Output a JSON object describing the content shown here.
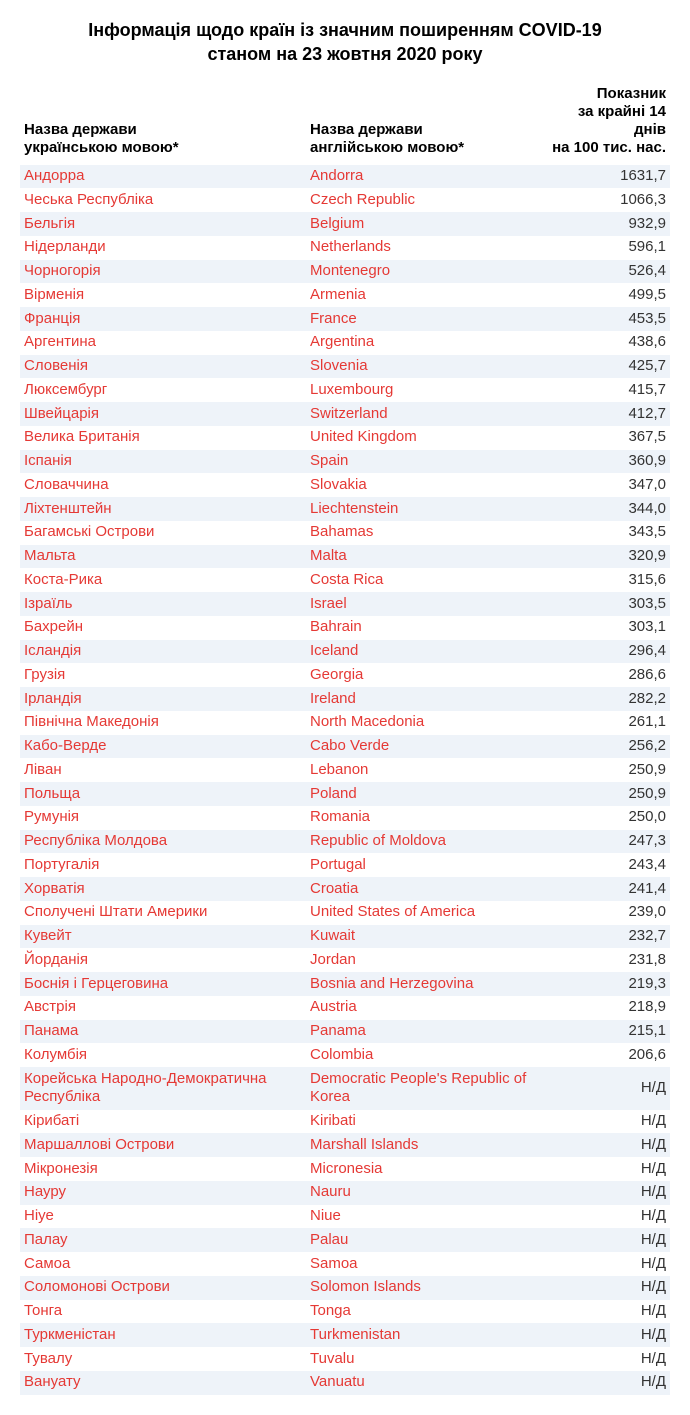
{
  "title_line1": "Інформація щодо країн із значним поширенням COVID-19",
  "title_line2": "станом на 23 жовтня 2020 року",
  "table": {
    "type": "table",
    "columns": {
      "uk_header_l1": "Назва держави",
      "uk_header_l2": "українською мовою*",
      "en_header_l1": "Назва держави",
      "en_header_l2": "англійською мовою*",
      "val_header_l1": "Показник",
      "val_header_l2": "за крайні 14 днів",
      "val_header_l3": "на 100 тис. нас."
    },
    "colors": {
      "country_text": "#e53935",
      "value_text": "#333333",
      "header_text": "#000000",
      "row_stripe_even": "#eef3f9",
      "row_stripe_odd": "#ffffff",
      "background": "#ffffff"
    },
    "font": {
      "title_size_pt": 18,
      "header_size_pt": 15,
      "body_size_pt": 15,
      "title_weight": 700,
      "header_weight": 700,
      "body_weight": 400
    },
    "column_widths_pct": [
      44,
      36,
      20
    ],
    "rows": [
      {
        "uk": "Андорра",
        "en": "Andorra",
        "val": "1631,7"
      },
      {
        "uk": "Чеська Республіка",
        "en": "Czech Republic",
        "val": "1066,3"
      },
      {
        "uk": "Бельгія",
        "en": "Belgium",
        "val": "932,9"
      },
      {
        "uk": "Нідерланди",
        "en": "Netherlands",
        "val": "596,1"
      },
      {
        "uk": "Чорногорія",
        "en": "Montenegro",
        "val": "526,4"
      },
      {
        "uk": "Вірменія",
        "en": "Armenia",
        "val": "499,5"
      },
      {
        "uk": "Франція",
        "en": "France",
        "val": "453,5"
      },
      {
        "uk": "Аргентина",
        "en": "Argentina",
        "val": "438,6"
      },
      {
        "uk": "Словенія",
        "en": "Slovenia",
        "val": "425,7"
      },
      {
        "uk": "Люксембург",
        "en": "Luxembourg",
        "val": "415,7"
      },
      {
        "uk": "Швейцарія",
        "en": "Switzerland",
        "val": "412,7"
      },
      {
        "uk": "Велика Британія",
        "en": "United Kingdom",
        "val": "367,5"
      },
      {
        "uk": "Іспанія",
        "en": "Spain",
        "val": "360,9"
      },
      {
        "uk": "Словаччина",
        "en": "Slovakia",
        "val": "347,0"
      },
      {
        "uk": "Ліхтенштейн",
        "en": "Liechtenstein",
        "val": "344,0"
      },
      {
        "uk": "Багамські Острови",
        "en": "Bahamas",
        "val": "343,5"
      },
      {
        "uk": "Мальта",
        "en": "Malta",
        "val": "320,9"
      },
      {
        "uk": "Коста-Рика",
        "en": "Costa Rica",
        "val": "315,6"
      },
      {
        "uk": "Ізраїль",
        "en": "Israel",
        "val": "303,5"
      },
      {
        "uk": "Бахрейн",
        "en": "Bahrain",
        "val": "303,1"
      },
      {
        "uk": "Ісландія",
        "en": "Iceland",
        "val": "296,4"
      },
      {
        "uk": "Грузія",
        "en": "Georgia",
        "val": "286,6"
      },
      {
        "uk": "Ірландія",
        "en": "Ireland",
        "val": "282,2"
      },
      {
        "uk": "Північна Македонія",
        "en": "North Macedonia",
        "val": "261,1"
      },
      {
        "uk": "Кабо-Верде",
        "en": "Cabo Verde",
        "val": "256,2"
      },
      {
        "uk": "Ліван",
        "en": "Lebanon",
        "val": "250,9"
      },
      {
        "uk": "Польща",
        "en": "Poland",
        "val": "250,9"
      },
      {
        "uk": "Румунія",
        "en": "Romania",
        "val": "250,0"
      },
      {
        "uk": "Республіка Молдова",
        "en": "Republic of Moldova",
        "val": "247,3"
      },
      {
        "uk": "Португалія",
        "en": "Portugal",
        "val": "243,4"
      },
      {
        "uk": "Хорватія",
        "en": "Croatia",
        "val": "241,4"
      },
      {
        "uk": "Сполучені Штати Америки",
        "en": "United States of America",
        "val": "239,0"
      },
      {
        "uk": "Кувейт",
        "en": "Kuwait",
        "val": "232,7"
      },
      {
        "uk": "Йорданія",
        "en": "Jordan",
        "val": "231,8"
      },
      {
        "uk": "Боснія і Герцеговина",
        "en": "Bosnia and Herzegovina",
        "val": "219,3"
      },
      {
        "uk": "Австрія",
        "en": "Austria",
        "val": "218,9"
      },
      {
        "uk": "Панама",
        "en": "Panama",
        "val": "215,1"
      },
      {
        "uk": "Колумбія",
        "en": "Colombia",
        "val": "206,6"
      },
      {
        "uk": "Корейська Народно-Демократична Республіка",
        "en": "Democratic People's Republic of Korea",
        "val": "Н/Д"
      },
      {
        "uk": "Кірибаті",
        "en": "Kiribati",
        "val": "Н/Д"
      },
      {
        "uk": "Маршаллові Острови",
        "en": "Marshall Islands",
        "val": "Н/Д"
      },
      {
        "uk": "Мікронезія",
        "en": "Micronesia",
        "val": "Н/Д"
      },
      {
        "uk": "Науру",
        "en": "Nauru",
        "val": "Н/Д"
      },
      {
        "uk": "Ніуе",
        "en": "Niue",
        "val": "Н/Д"
      },
      {
        "uk": "Палау",
        "en": "Palau",
        "val": "Н/Д"
      },
      {
        "uk": "Самоа",
        "en": "Samoa",
        "val": "Н/Д"
      },
      {
        "uk": "Соломонові Острови",
        "en": "Solomon Islands",
        "val": "Н/Д"
      },
      {
        "uk": "Тонга",
        "en": "Tonga",
        "val": "Н/Д"
      },
      {
        "uk": "Туркменістан",
        "en": "Turkmenistan",
        "val": "Н/Д"
      },
      {
        "uk": "Тувалу",
        "en": "Tuvalu",
        "val": "Н/Д"
      },
      {
        "uk": "Вануату",
        "en": "Vanuatu",
        "val": "Н/Д"
      }
    ]
  }
}
